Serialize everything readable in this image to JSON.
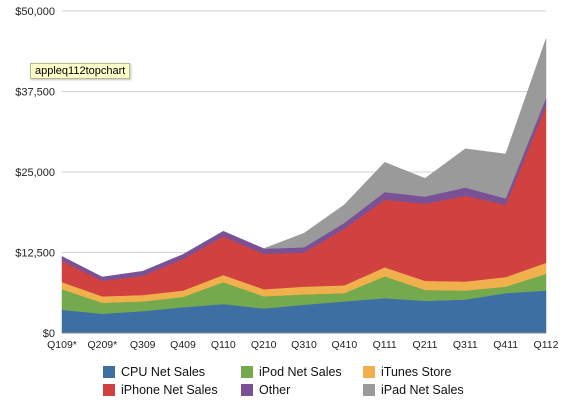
{
  "tooltip": {
    "text": "appleq112topchart"
  },
  "chart_data": {
    "type": "area",
    "stacked": true,
    "title": "",
    "xlabel": "",
    "ylabel": "",
    "ylim": [
      0,
      50000
    ],
    "yticks": [
      0,
      12500,
      25000,
      37500,
      50000
    ],
    "ytick_labels": [
      "$0",
      "$12,500",
      "$25,000",
      "$37,500",
      "$50,000"
    ],
    "categories": [
      "Q109*",
      "Q209*",
      "Q309",
      "Q409",
      "Q110",
      "Q210",
      "Q310",
      "Q410",
      "Q111",
      "Q211",
      "Q311",
      "Q411",
      "Q112"
    ],
    "grid": true,
    "legend_position": "bottom",
    "series": [
      {
        "name": "CPU Net Sales",
        "color": "#3d6fa5",
        "values": [
          3600,
          3000,
          3400,
          4000,
          4500,
          3800,
          4400,
          4900,
          5400,
          5000,
          5200,
          6200,
          6600
        ]
      },
      {
        "name": "iPod Net Sales",
        "color": "#74a94d",
        "values": [
          3200,
          1700,
          1500,
          1600,
          3400,
          1900,
          1600,
          1300,
          3400,
          1700,
          1400,
          1000,
          2600
        ]
      },
      {
        "name": "iTunes Store",
        "color": "#f0b04c",
        "values": [
          1100,
          1000,
          1000,
          1000,
          1100,
          1100,
          1200,
          1200,
          1400,
          1400,
          1400,
          1500,
          1700
        ]
      },
      {
        "name": "iPhone Net Sales",
        "color": "#d04140",
        "values": [
          3300,
          2400,
          3000,
          4900,
          6000,
          5500,
          5300,
          8800,
          10500,
          12000,
          13300,
          11200,
          24400
        ]
      },
      {
        "name": "Other",
        "color": "#7b5196",
        "values": [
          700,
          600,
          700,
          700,
          800,
          800,
          800,
          900,
          1200,
          1100,
          1300,
          1000,
          1200
        ]
      },
      {
        "name": "iPad Net Sales",
        "color": "#9a9a9a",
        "values": [
          0,
          0,
          0,
          0,
          0,
          0,
          2200,
          2800,
          4600,
          2800,
          6000,
          6900,
          9200
        ]
      }
    ],
    "legend_order": [
      "CPU Net Sales",
      "iPod Net Sales",
      "iTunes Store",
      "iPhone Net Sales",
      "Other",
      "iPad Net Sales"
    ]
  }
}
